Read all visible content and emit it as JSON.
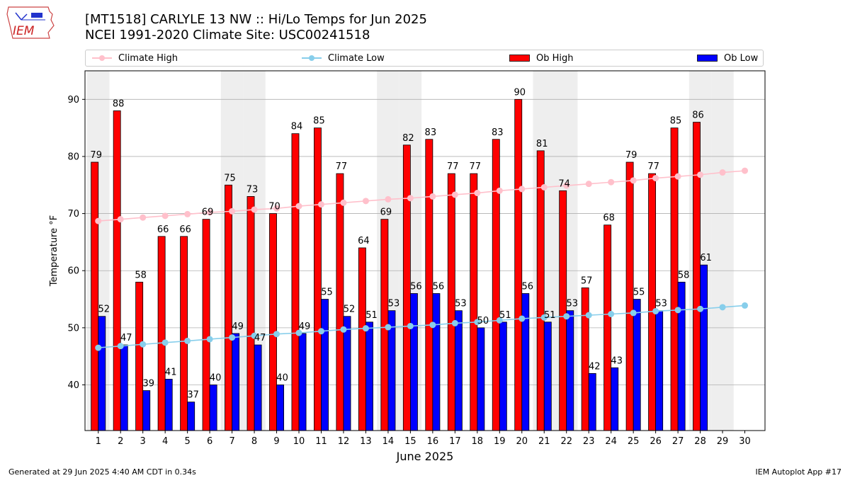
{
  "header": {
    "logo_text": "IEM",
    "title_line1": "[MT1518] CARLYLE 13 NW :: Hi/Lo Temps for Jun 2025",
    "title_line2": "NCEI 1991-2020 Climate Site: USC00241518"
  },
  "legend": {
    "climate_high": "Climate High",
    "climate_low": "Climate Low",
    "ob_high": "Ob High",
    "ob_low": "Ob Low"
  },
  "footer": {
    "generated": "Generated at 29 Jun 2025 4:40 AM CDT in 0.34s",
    "app": "IEM Autoplot App #17"
  },
  "colors": {
    "climate_high": "#ffc0cb",
    "climate_low": "#87ceeb",
    "ob_high": "#ff0000",
    "ob_low": "#0000ff",
    "weekend_shade": "#eeeeee",
    "grid": "#b0b0b0"
  },
  "chart_data": {
    "type": "bar",
    "xlabel": "June 2025",
    "ylabel": "Temperature °F",
    "ylim": [
      32,
      95
    ],
    "yticks": [
      40,
      50,
      60,
      70,
      80,
      90
    ],
    "grid": "horizontal",
    "legend_position": "top",
    "x": [
      1,
      2,
      3,
      4,
      5,
      6,
      7,
      8,
      9,
      10,
      11,
      12,
      13,
      14,
      15,
      16,
      17,
      18,
      19,
      20,
      21,
      22,
      23,
      24,
      25,
      26,
      27,
      28,
      29,
      30
    ],
    "weekend_days": [
      1,
      7,
      8,
      14,
      15,
      21,
      22,
      28,
      29
    ],
    "series": [
      {
        "name": "Ob High",
        "kind": "bar",
        "values": [
          79,
          88,
          58,
          66,
          66,
          69,
          75,
          73,
          70,
          84,
          85,
          77,
          64,
          69,
          82,
          83,
          77,
          77,
          83,
          90,
          81,
          74,
          57,
          68,
          79,
          77,
          85,
          86,
          null,
          null
        ]
      },
      {
        "name": "Ob Low",
        "kind": "bar",
        "values": [
          52,
          47,
          39,
          41,
          37,
          40,
          49,
          47,
          40,
          49,
          55,
          52,
          51,
          53,
          56,
          56,
          53,
          50,
          51,
          56,
          51,
          53,
          42,
          43,
          55,
          53,
          58,
          61,
          null,
          null
        ]
      },
      {
        "name": "Climate High",
        "kind": "line",
        "values": [
          68.7,
          69.0,
          69.3,
          69.6,
          69.9,
          70.2,
          70.4,
          70.7,
          70.9,
          71.3,
          71.6,
          71.9,
          72.2,
          72.5,
          72.7,
          73.0,
          73.3,
          73.6,
          74.0,
          74.3,
          74.6,
          74.9,
          75.2,
          75.5,
          75.8,
          76.2,
          76.5,
          76.8,
          77.2,
          77.5
        ]
      },
      {
        "name": "Climate Low",
        "kind": "line",
        "values": [
          46.5,
          46.8,
          47.1,
          47.4,
          47.7,
          48.0,
          48.3,
          48.6,
          48.9,
          49.1,
          49.4,
          49.7,
          49.9,
          50.1,
          50.3,
          50.5,
          50.8,
          51.0,
          51.3,
          51.6,
          51.8,
          52.0,
          52.2,
          52.4,
          52.6,
          52.9,
          53.1,
          53.3,
          53.6,
          53.9
        ]
      }
    ]
  }
}
